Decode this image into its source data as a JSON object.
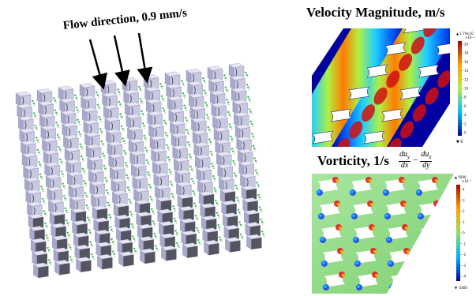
{
  "flow_label": "Flow direction, 0.9 mm/s",
  "velocity": {
    "title": "Velocity Magnitude, m/s",
    "colorbar_ticks": [
      "20",
      "18",
      "16",
      "14",
      "12",
      "10",
      "8",
      "6",
      "4",
      "2",
      "0"
    ],
    "colorbar_max": "▲ 1.79×10",
    "colorbar_exp": "×10⁻⁴",
    "colorbar_min": "▼ 0"
  },
  "vorticity": {
    "title": "Vorticity, 1/s",
    "formula": {
      "num1": "du",
      "num1_sub": "y",
      "den1": "dx",
      "minus": "−",
      "num2": "du",
      "num2_sub": "x",
      "den2": "dy"
    },
    "colorbar_ticks": [
      "4",
      "3",
      "2",
      "1",
      "0",
      "-1",
      "-2",
      "-3",
      "-4"
    ],
    "colorbar_max": "▲ 5000",
    "colorbar_exp": "×10⁻³",
    "colorbar_min": "▼ -5000"
  },
  "colors": {
    "cube_top": "#e4e4f4",
    "cube_front": "#a8a8cc",
    "cube_side": "#55555f",
    "connector": "#39b54a",
    "velocity_low": "#0000a0",
    "velocity_high": "#a50000",
    "vorticity_mid": "#8fd37f"
  }
}
